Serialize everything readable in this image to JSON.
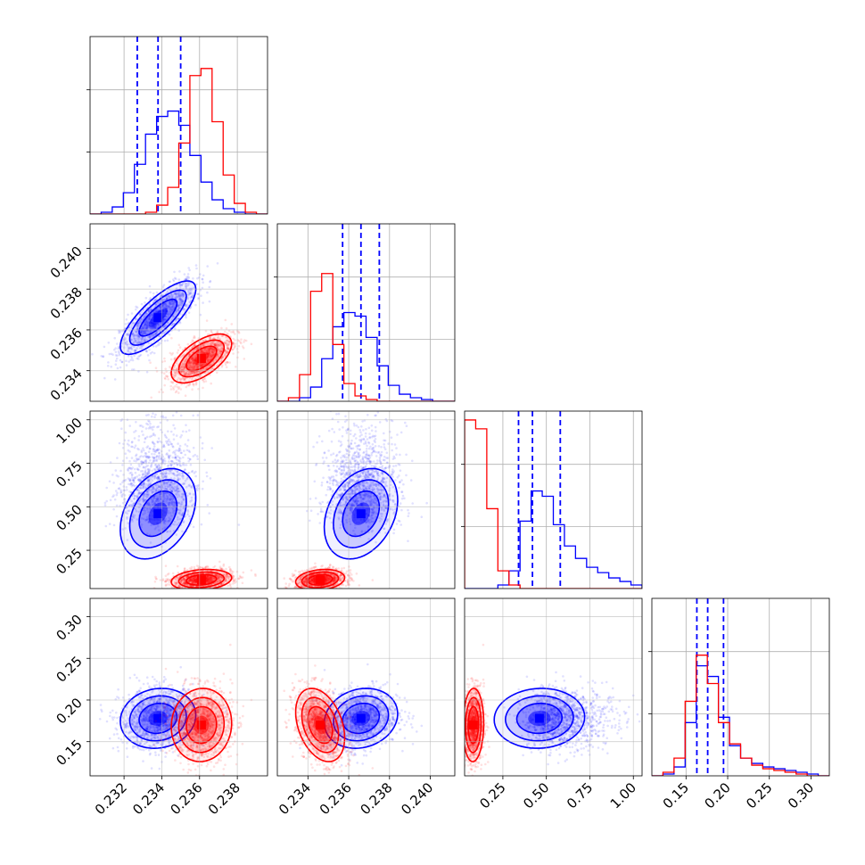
{
  "chart_data": {
    "type": "corner",
    "parameters": [
      {
        "range": [
          0.2302,
          0.2396
        ],
        "ticks": [
          0.232,
          0.234,
          0.236,
          0.238
        ],
        "tick_labels": [
          "0.232",
          "0.234",
          "0.236",
          "0.238"
        ]
      },
      {
        "range": [
          0.2325,
          0.2412
        ],
        "ticks": [
          0.234,
          0.236,
          0.238,
          0.24
        ],
        "tick_labels": [
          "0.234",
          "0.236",
          "0.238",
          "0.240"
        ]
      },
      {
        "range": [
          0.03,
          1.05
        ],
        "ticks": [
          0.25,
          0.5,
          0.75,
          1.0
        ],
        "tick_labels": [
          "0.25",
          "0.50",
          "0.75",
          "1.00"
        ]
      },
      {
        "range": [
          0.109,
          0.322
        ],
        "ticks": [
          0.15,
          0.2,
          0.25,
          0.3
        ],
        "tick_labels": [
          "0.15",
          "0.20",
          "0.25",
          "0.30"
        ]
      }
    ],
    "series": [
      {
        "color": "#0000ff",
        "mean": [
          0.2338,
          0.2366,
          0.46,
          0.178
        ],
        "sd": [
          0.001,
          0.0009,
          0.13,
          0.018
        ],
        "correlation": [
          [
            1.0,
            0.78,
            0.35,
            0.1
          ],
          [
            0.78,
            1.0,
            0.3,
            0.15
          ],
          [
            0.35,
            0.3,
            1.0,
            0.05
          ],
          [
            0.1,
            0.15,
            0.05,
            1.0
          ]
        ],
        "quantiles": [
          [
            0.2327,
            0.2338,
            0.235
          ],
          [
            0.2357,
            0.2366,
            0.2375
          ],
          [
            0.34,
            0.42,
            0.58
          ],
          [
            0.163,
            0.176,
            0.195
          ]
        ],
        "histograms": [
          [
            0.0,
            0.01,
            0.04,
            0.12,
            0.28,
            0.45,
            0.55,
            0.58,
            0.5,
            0.33,
            0.18,
            0.08,
            0.03,
            0.01,
            0.0,
            0.0
          ],
          [
            0.0,
            0.0,
            0.02,
            0.08,
            0.24,
            0.42,
            0.5,
            0.48,
            0.36,
            0.2,
            0.09,
            0.04,
            0.02,
            0.01,
            0.0,
            0.0
          ],
          [
            0.0,
            0.0,
            0.0,
            0.02,
            0.1,
            0.38,
            0.55,
            0.52,
            0.36,
            0.24,
            0.17,
            0.12,
            0.09,
            0.06,
            0.04,
            0.02
          ],
          [
            0.0,
            0.01,
            0.05,
            0.3,
            0.62,
            0.56,
            0.33,
            0.17,
            0.1,
            0.07,
            0.05,
            0.04,
            0.03,
            0.02,
            0.01,
            0.0
          ]
        ]
      },
      {
        "color": "#ff0000",
        "mean": [
          0.2361,
          0.2346,
          0.08,
          0.17
        ],
        "sd": [
          0.0008,
          0.0006,
          0.03,
          0.022
        ],
        "correlation": [
          [
            1.0,
            0.6,
            0.2,
            0.05
          ],
          [
            0.6,
            1.0,
            0.2,
            -0.35
          ],
          [
            0.2,
            0.2,
            1.0,
            0.05
          ],
          [
            0.05,
            -0.35,
            0.05,
            1.0
          ]
        ],
        "quantiles": [],
        "histograms": [
          [
            0.0,
            0.0,
            0.0,
            0.0,
            0.0,
            0.01,
            0.05,
            0.15,
            0.4,
            0.78,
            0.82,
            0.52,
            0.22,
            0.06,
            0.01,
            0.0
          ],
          [
            0.0,
            0.02,
            0.15,
            0.62,
            0.72,
            0.32,
            0.1,
            0.03,
            0.01,
            0.0,
            0.0,
            0.0,
            0.0,
            0.0,
            0.0,
            0.0
          ],
          [
            0.95,
            0.9,
            0.45,
            0.1,
            0.02,
            0.0,
            0.0,
            0.0,
            0.0,
            0.0,
            0.0,
            0.0,
            0.0,
            0.0,
            0.0,
            0.0
          ],
          [
            0.0,
            0.02,
            0.1,
            0.42,
            0.68,
            0.52,
            0.3,
            0.18,
            0.1,
            0.06,
            0.04,
            0.03,
            0.02,
            0.01,
            0.0,
            0.0
          ]
        ]
      }
    ],
    "quantile_line_style": "dashed",
    "grid": true
  }
}
